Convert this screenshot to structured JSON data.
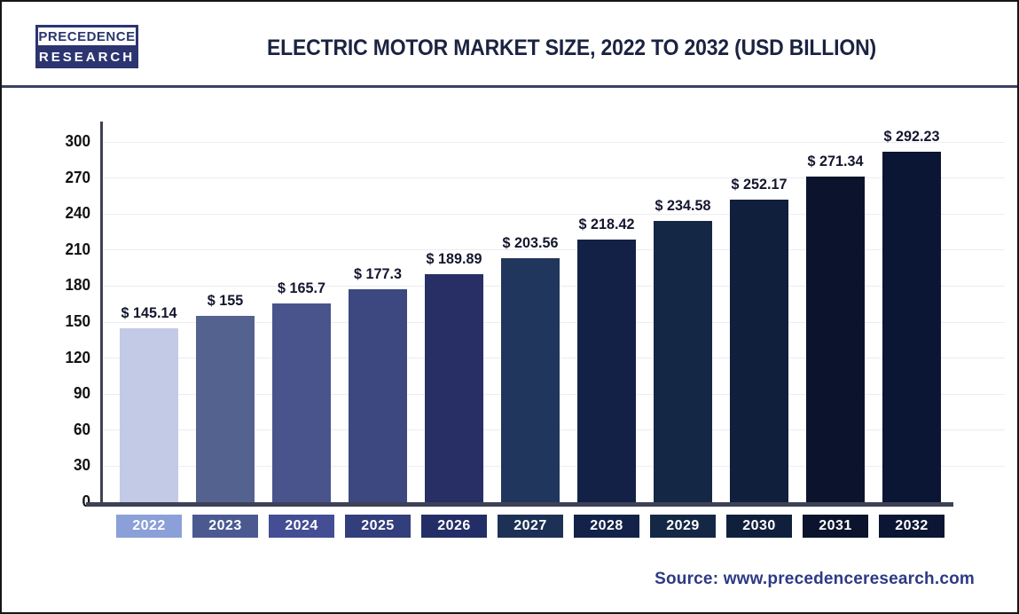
{
  "header": {
    "logo": {
      "line1": "PRECEDENCE",
      "line2": "RESEARCH"
    }
  },
  "footer": {
    "source": "Source: www.precedenceresearch.com"
  },
  "chart_data": {
    "type": "bar",
    "title": "ELECTRIC MOTOR MARKET SIZE, 2022 TO 2032 (USD BILLION)",
    "categories": [
      "2022",
      "2023",
      "2024",
      "2025",
      "2026",
      "2027",
      "2028",
      "2029",
      "2030",
      "2031",
      "2032"
    ],
    "values": [
      145.14,
      155,
      165.7,
      177.3,
      189.89,
      203.56,
      218.42,
      234.58,
      252.17,
      271.34,
      292.23
    ],
    "value_labels": [
      "$ 145.14",
      "$ 155",
      "$ 165.7",
      "$ 177.3",
      "$ 189.89",
      "$ 203.56",
      "$ 218.42",
      "$ 234.58",
      "$ 252.17",
      "$ 271.34",
      "$ 292.23"
    ],
    "bar_colors": [
      "#c2cae6",
      "#54628f",
      "#49538c",
      "#3d4780",
      "#272f64",
      "#21365c",
      "#142146",
      "#142846",
      "#10203c",
      "#0b142c",
      "#0b1634"
    ],
    "badge_colors": [
      "#8ba0d8",
      "#4a5a91",
      "#434e94",
      "#333e7c",
      "#232e66",
      "#1d3156",
      "#132248",
      "#142846",
      "#10203c",
      "#0b142c",
      "#0b1634"
    ],
    "xlabel": "",
    "ylabel": "",
    "ylim": [
      0,
      300
    ],
    "yticks": [
      0,
      30,
      60,
      90,
      120,
      150,
      180,
      210,
      240,
      270,
      300
    ],
    "grid": true,
    "legend": "none",
    "units": "USD Billion"
  }
}
